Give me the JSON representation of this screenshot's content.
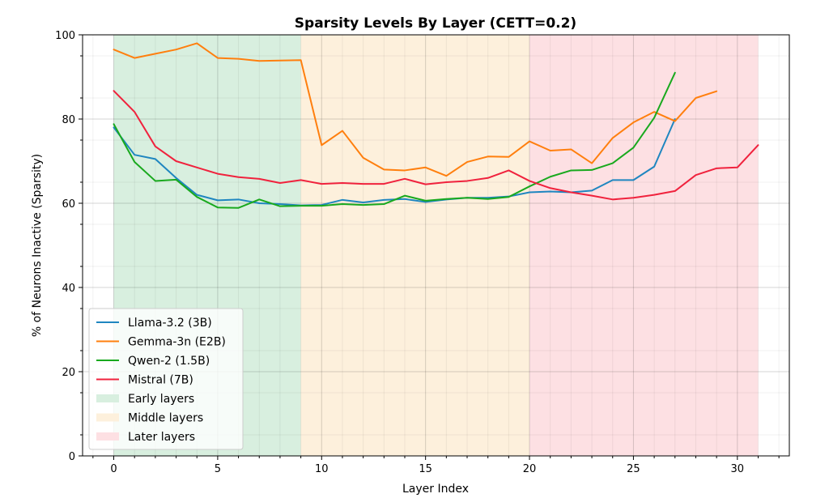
{
  "chart_data": {
    "type": "line",
    "title": "Sparsity Levels By Layer (CETT=0.2)",
    "xlabel": "Layer Index",
    "ylabel": "% of Neurons Inactive (Sparsity)",
    "xlim": [
      -1.5,
      32.5
    ],
    "ylim": [
      0,
      100
    ],
    "xticks": [
      0,
      5,
      10,
      15,
      20,
      25,
      30
    ],
    "yticks": [
      0,
      20,
      40,
      60,
      80,
      100
    ],
    "grid": true,
    "legend_position": "lower-left",
    "regions": [
      {
        "name": "Early layers",
        "x0": 0,
        "x1": 9,
        "color": "#d8efdf"
      },
      {
        "name": "Middle layers",
        "x0": 9,
        "x1": 20,
        "color": "#fdf0dc"
      },
      {
        "name": "Later layers",
        "x0": 20,
        "x1": 31,
        "color": "#fde0e3"
      }
    ],
    "series": [
      {
        "name": "Llama-3.2 (3B)",
        "color": "#1f86c0",
        "x": [
          0,
          1,
          2,
          3,
          4,
          5,
          6,
          7,
          8,
          9,
          10,
          11,
          12,
          13,
          14,
          15,
          16,
          17,
          18,
          19,
          20,
          21,
          22,
          23,
          24,
          25,
          26,
          27
        ],
        "values": [
          78.0,
          71.5,
          70.5,
          66.0,
          62.0,
          60.7,
          60.9,
          60.0,
          59.8,
          59.5,
          59.6,
          60.8,
          60.2,
          60.8,
          61.0,
          60.3,
          60.9,
          61.3,
          61.3,
          61.6,
          62.6,
          62.8,
          62.6,
          63.0,
          65.5,
          65.5,
          68.7,
          80.0
        ]
      },
      {
        "name": "Gemma-3n (E2B)",
        "color": "#ff7f0e",
        "x": [
          0,
          1,
          2,
          3,
          4,
          5,
          6,
          7,
          8,
          9,
          10,
          11,
          12,
          13,
          14,
          15,
          16,
          17,
          18,
          19,
          20,
          21,
          22,
          23,
          24,
          25,
          26,
          27,
          28,
          29
        ],
        "values": [
          96.5,
          94.5,
          95.5,
          96.5,
          98.0,
          94.5,
          94.3,
          93.8,
          93.9,
          94.0,
          73.8,
          77.2,
          70.8,
          68.0,
          67.8,
          68.5,
          66.5,
          69.8,
          71.1,
          71.0,
          74.7,
          72.5,
          72.8,
          69.5,
          75.5,
          79.2,
          81.7,
          79.5,
          85.0,
          86.6
        ]
      },
      {
        "name": "Qwen-2 (1.5B)",
        "color": "#19a91e",
        "x": [
          0,
          1,
          2,
          3,
          4,
          5,
          6,
          7,
          8,
          9,
          10,
          11,
          12,
          13,
          14,
          15,
          16,
          17,
          18,
          19,
          20,
          21,
          22,
          23,
          24,
          25,
          26,
          27
        ],
        "values": [
          78.8,
          69.8,
          65.3,
          65.6,
          61.5,
          59.0,
          58.9,
          60.9,
          59.3,
          59.4,
          59.4,
          59.8,
          59.6,
          59.8,
          61.8,
          60.6,
          61.0,
          61.3,
          61.0,
          61.5,
          64.0,
          66.3,
          67.8,
          67.9,
          69.5,
          73.2,
          80.3,
          91.0
        ]
      },
      {
        "name": "Mistral (7B)",
        "color": "#f0223d",
        "x": [
          0,
          1,
          2,
          3,
          4,
          5,
          6,
          7,
          8,
          9,
          10,
          11,
          12,
          13,
          14,
          15,
          16,
          17,
          18,
          19,
          20,
          21,
          22,
          23,
          24,
          25,
          26,
          27,
          28,
          29,
          30,
          31
        ],
        "values": [
          86.7,
          81.7,
          73.5,
          70.0,
          68.5,
          67.0,
          66.2,
          65.8,
          64.8,
          65.5,
          64.6,
          64.8,
          64.6,
          64.6,
          65.8,
          64.5,
          65.0,
          65.3,
          66.0,
          67.8,
          65.3,
          63.6,
          62.6,
          61.8,
          60.9,
          61.3,
          62.0,
          62.9,
          66.7,
          68.3,
          68.5,
          73.8
        ]
      }
    ]
  }
}
